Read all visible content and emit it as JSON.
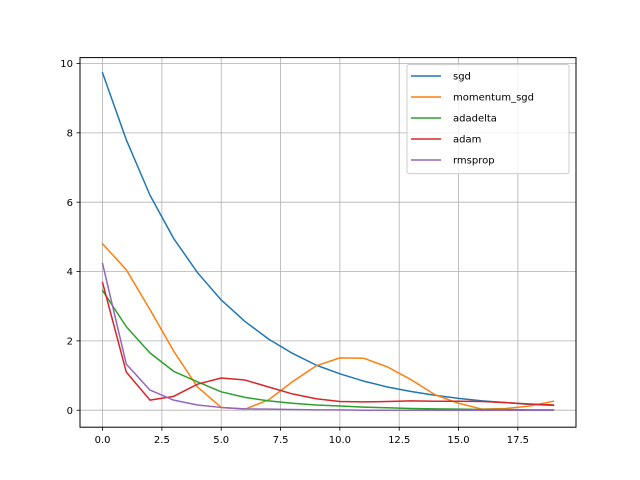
{
  "chart_data": {
    "type": "line",
    "title": "",
    "xlabel": "",
    "ylabel": "",
    "x": [
      0,
      1,
      2,
      3,
      4,
      5,
      6,
      7,
      8,
      9,
      10,
      11,
      12,
      13,
      14,
      15,
      16,
      17,
      18,
      19
    ],
    "xlim": [
      -0.95,
      19.95
    ],
    "ylim": [
      -0.49,
      10.17
    ],
    "xticks": [
      0.0,
      2.5,
      5.0,
      7.5,
      10.0,
      12.5,
      15.0,
      17.5
    ],
    "xtick_labels": [
      "0.0",
      "2.5",
      "5.0",
      "7.5",
      "10.0",
      "12.5",
      "15.0",
      "17.5"
    ],
    "yticks": [
      0,
      2,
      4,
      6,
      8,
      10
    ],
    "ytick_labels": [
      "0",
      "2",
      "4",
      "6",
      "8",
      "10"
    ],
    "grid": true,
    "legend_position": "upper right",
    "series": [
      {
        "name": "sgd",
        "color": "#1f77b4",
        "values": [
          9.73,
          7.8,
          6.2,
          4.95,
          3.97,
          3.18,
          2.56,
          2.05,
          1.64,
          1.3,
          1.05,
          0.84,
          0.67,
          0.54,
          0.43,
          0.34,
          0.27,
          0.22,
          0.17,
          0.14
        ]
      },
      {
        "name": "momentum_sgd",
        "color": "#ff7f0e",
        "values": [
          4.8,
          4.05,
          2.9,
          1.7,
          0.67,
          0.08,
          0.03,
          0.3,
          0.82,
          1.28,
          1.51,
          1.5,
          1.25,
          0.88,
          0.45,
          0.2,
          0.03,
          0.05,
          0.12,
          0.26
        ]
      },
      {
        "name": "adadelta",
        "color": "#2ca02c",
        "values": [
          3.45,
          2.41,
          1.65,
          1.12,
          0.82,
          0.53,
          0.37,
          0.27,
          0.2,
          0.15,
          0.12,
          0.09,
          0.07,
          0.05,
          0.04,
          0.03,
          0.02,
          0.02,
          0.01,
          0.01
        ]
      },
      {
        "name": "adam",
        "color": "#d62728",
        "values": [
          3.68,
          1.1,
          0.29,
          0.4,
          0.75,
          0.93,
          0.87,
          0.67,
          0.47,
          0.33,
          0.25,
          0.24,
          0.25,
          0.27,
          0.26,
          0.26,
          0.25,
          0.22,
          0.18,
          0.15
        ]
      },
      {
        "name": "rmsprop",
        "color": "#9467bd",
        "values": [
          4.23,
          1.33,
          0.58,
          0.29,
          0.15,
          0.08,
          0.04,
          0.03,
          0.02,
          0.01,
          0.01,
          0.0,
          0.0,
          0.0,
          0.0,
          0.0,
          0.0,
          0.0,
          0.0,
          0.0
        ]
      }
    ]
  },
  "legend": {
    "items": [
      {
        "label": "sgd",
        "color": "#1f77b4"
      },
      {
        "label": "momentum_sgd",
        "color": "#ff7f0e"
      },
      {
        "label": "adadelta",
        "color": "#2ca02c"
      },
      {
        "label": "adam",
        "color": "#d62728"
      },
      {
        "label": "rmsprop",
        "color": "#9467bd"
      }
    ]
  },
  "style": {
    "grid_color": "#b0b0b0",
    "axis_color": "#000000",
    "background": "#ffffff"
  }
}
